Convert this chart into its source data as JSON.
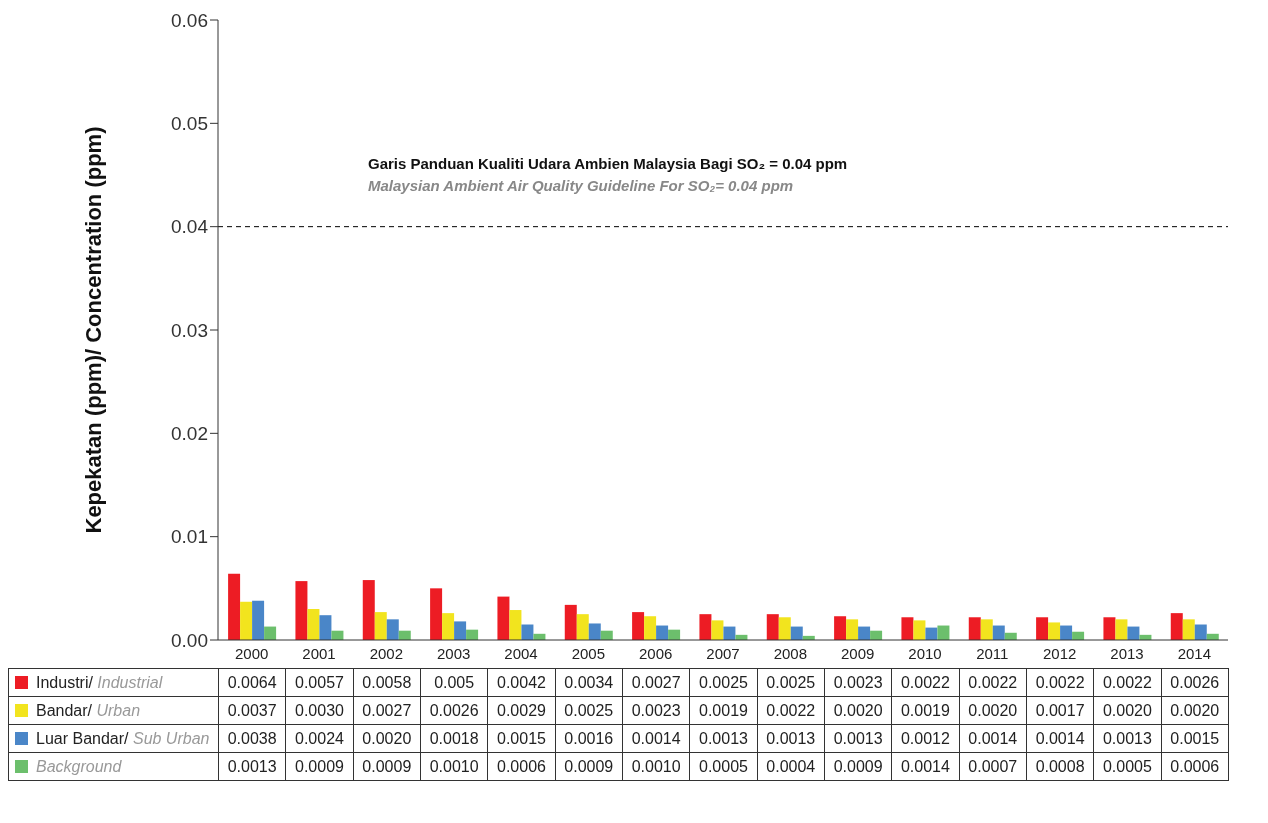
{
  "chart_data": {
    "type": "bar",
    "ylabel": "Kepekatan (ppm)/ Concentration (ppm)",
    "categories": [
      "2000",
      "2001",
      "2002",
      "2003",
      "2004",
      "2005",
      "2006",
      "2007",
      "2008",
      "2009",
      "2010",
      "2011",
      "2012",
      "2013",
      "2014"
    ],
    "series": [
      {
        "name": "Industri/ Industrial",
        "color": "#ed1c24",
        "values": [
          0.0064,
          0.0057,
          0.0058,
          0.005,
          0.0042,
          0.0034,
          0.0027,
          0.0025,
          0.0025,
          0.0023,
          0.0022,
          0.0022,
          0.0022,
          0.0022,
          0.0026
        ],
        "value_labels": [
          "0.0064",
          "0.0057",
          "0.0058",
          "0.005",
          "0.0042",
          "0.0034",
          "0.0027",
          "0.0025",
          "0.0025",
          "0.0023",
          "0.0022",
          "0.0022",
          "0.0022",
          "0.0022",
          "0.0026"
        ]
      },
      {
        "name": "Bandar/ Urban",
        "color": "#f2e41e",
        "values": [
          0.0037,
          0.003,
          0.0027,
          0.0026,
          0.0029,
          0.0025,
          0.0023,
          0.0019,
          0.0022,
          0.002,
          0.0019,
          0.002,
          0.0017,
          0.002,
          0.002
        ],
        "value_labels": [
          "0.0037",
          "0.0030",
          "0.0027",
          "0.0026",
          "0.0029",
          "0.0025",
          "0.0023",
          "0.0019",
          "0.0022",
          "0.0020",
          "0.0019",
          "0.0020",
          "0.0017",
          "0.0020",
          "0.0020"
        ]
      },
      {
        "name": "Luar Bandar/ Sub Urban",
        "color": "#4a86c8",
        "values": [
          0.0038,
          0.0024,
          0.002,
          0.0018,
          0.0015,
          0.0016,
          0.0014,
          0.0013,
          0.0013,
          0.0013,
          0.0012,
          0.0014,
          0.0014,
          0.0013,
          0.0015
        ],
        "value_labels": [
          "0.0038",
          "0.0024",
          "0.0020",
          "0.0018",
          "0.0015",
          "0.0016",
          "0.0014",
          "0.0013",
          "0.0013",
          "0.0013",
          "0.0012",
          "0.0014",
          "0.0014",
          "0.0013",
          "0.0015"
        ]
      },
      {
        "name": "Background",
        "color": "#6cbf6c",
        "values": [
          0.0013,
          0.0009,
          0.0009,
          0.001,
          0.0006,
          0.0009,
          0.001,
          0.0005,
          0.0004,
          0.0009,
          0.0014,
          0.0007,
          0.0008,
          0.0005,
          0.0006
        ],
        "value_labels": [
          "0.0013",
          "0.0009",
          "0.0009",
          "0.0010",
          "0.0006",
          "0.0009",
          "0.0010",
          "0.0005",
          "0.0004",
          "0.0009",
          "0.0014",
          "0.0007",
          "0.0008",
          "0.0005",
          "0.0006"
        ]
      }
    ],
    "ylim": [
      0,
      0.06
    ],
    "yticks": [
      {
        "value": 0,
        "label": "0.00"
      },
      {
        "value": 0.01,
        "label": "0.01"
      },
      {
        "value": 0.02,
        "label": "0.02"
      },
      {
        "value": 0.03,
        "label": "0.03"
      },
      {
        "value": 0.04,
        "label": "0.04"
      },
      {
        "value": 0.05,
        "label": "0.05"
      },
      {
        "value": 0.06,
        "label": "0.06"
      }
    ],
    "grid": false,
    "legend": "bottom",
    "ref_lines": [
      {
        "axis": "y",
        "value": 0.04,
        "label": "Garis Panduan Kualiti Udara Ambien Malaysia Bagi SO₂ = 0.04 ppm",
        "color": "#000000",
        "line_style": "dashed"
      }
    ],
    "annotations": [
      "Malaysian Ambient Air Quality Guideline For SO₂= 0.04 ppm"
    ]
  }
}
